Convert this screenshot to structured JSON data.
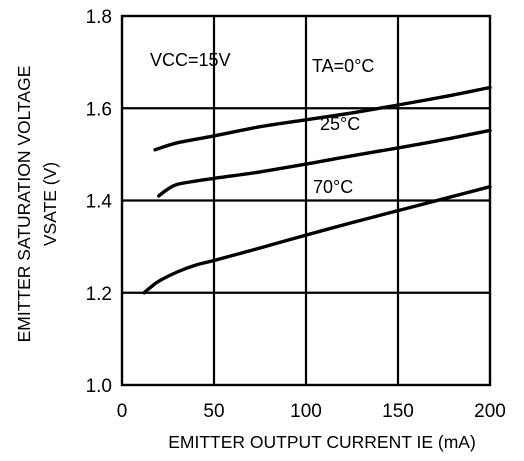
{
  "chart_data": {
    "type": "line",
    "title": "",
    "xlabel": "EMITTER OUTPUT CURRENT IE (mA)",
    "ylabel_line1": "EMITTER SATURATION VOLTAGE",
    "ylabel_line2": "VSATE  (V)",
    "xlim": [
      0,
      200
    ],
    "ylim": [
      1.0,
      1.8
    ],
    "x_ticks": [
      0,
      50,
      100,
      150,
      200
    ],
    "y_ticks": [
      1.0,
      1.2,
      1.4,
      1.6,
      1.8
    ],
    "x_tick_labels": [
      "0",
      "50",
      "100",
      "150",
      "200"
    ],
    "y_tick_labels": [
      "1.0",
      "1.2",
      "1.4",
      "1.6",
      "1.8"
    ],
    "grid": true,
    "series": [
      {
        "name": "TA=0°C",
        "x": [
          18,
          30,
          50,
          75,
          100,
          125,
          150,
          175,
          200
        ],
        "y": [
          1.51,
          1.525,
          1.54,
          1.56,
          1.575,
          1.59,
          1.607,
          1.625,
          1.645
        ]
      },
      {
        "name": "25°C",
        "x": [
          20,
          25,
          30,
          40,
          50,
          75,
          100,
          125,
          150,
          175,
          200
        ],
        "y": [
          1.41,
          1.425,
          1.435,
          1.442,
          1.448,
          1.462,
          1.479,
          1.497,
          1.514,
          1.532,
          1.552
        ]
      },
      {
        "name": "70°C",
        "x": [
          12,
          15,
          20,
          30,
          40,
          50,
          75,
          100,
          125,
          150,
          175,
          200
        ],
        "y": [
          1.2,
          1.21,
          1.225,
          1.245,
          1.26,
          1.27,
          1.297,
          1.325,
          1.352,
          1.378,
          1.404,
          1.43
        ]
      }
    ],
    "annotations": {
      "condition": "VCC=15V",
      "label_0c": "TA=0°C",
      "label_25c": "25°C",
      "label_70c": "70°C"
    }
  }
}
